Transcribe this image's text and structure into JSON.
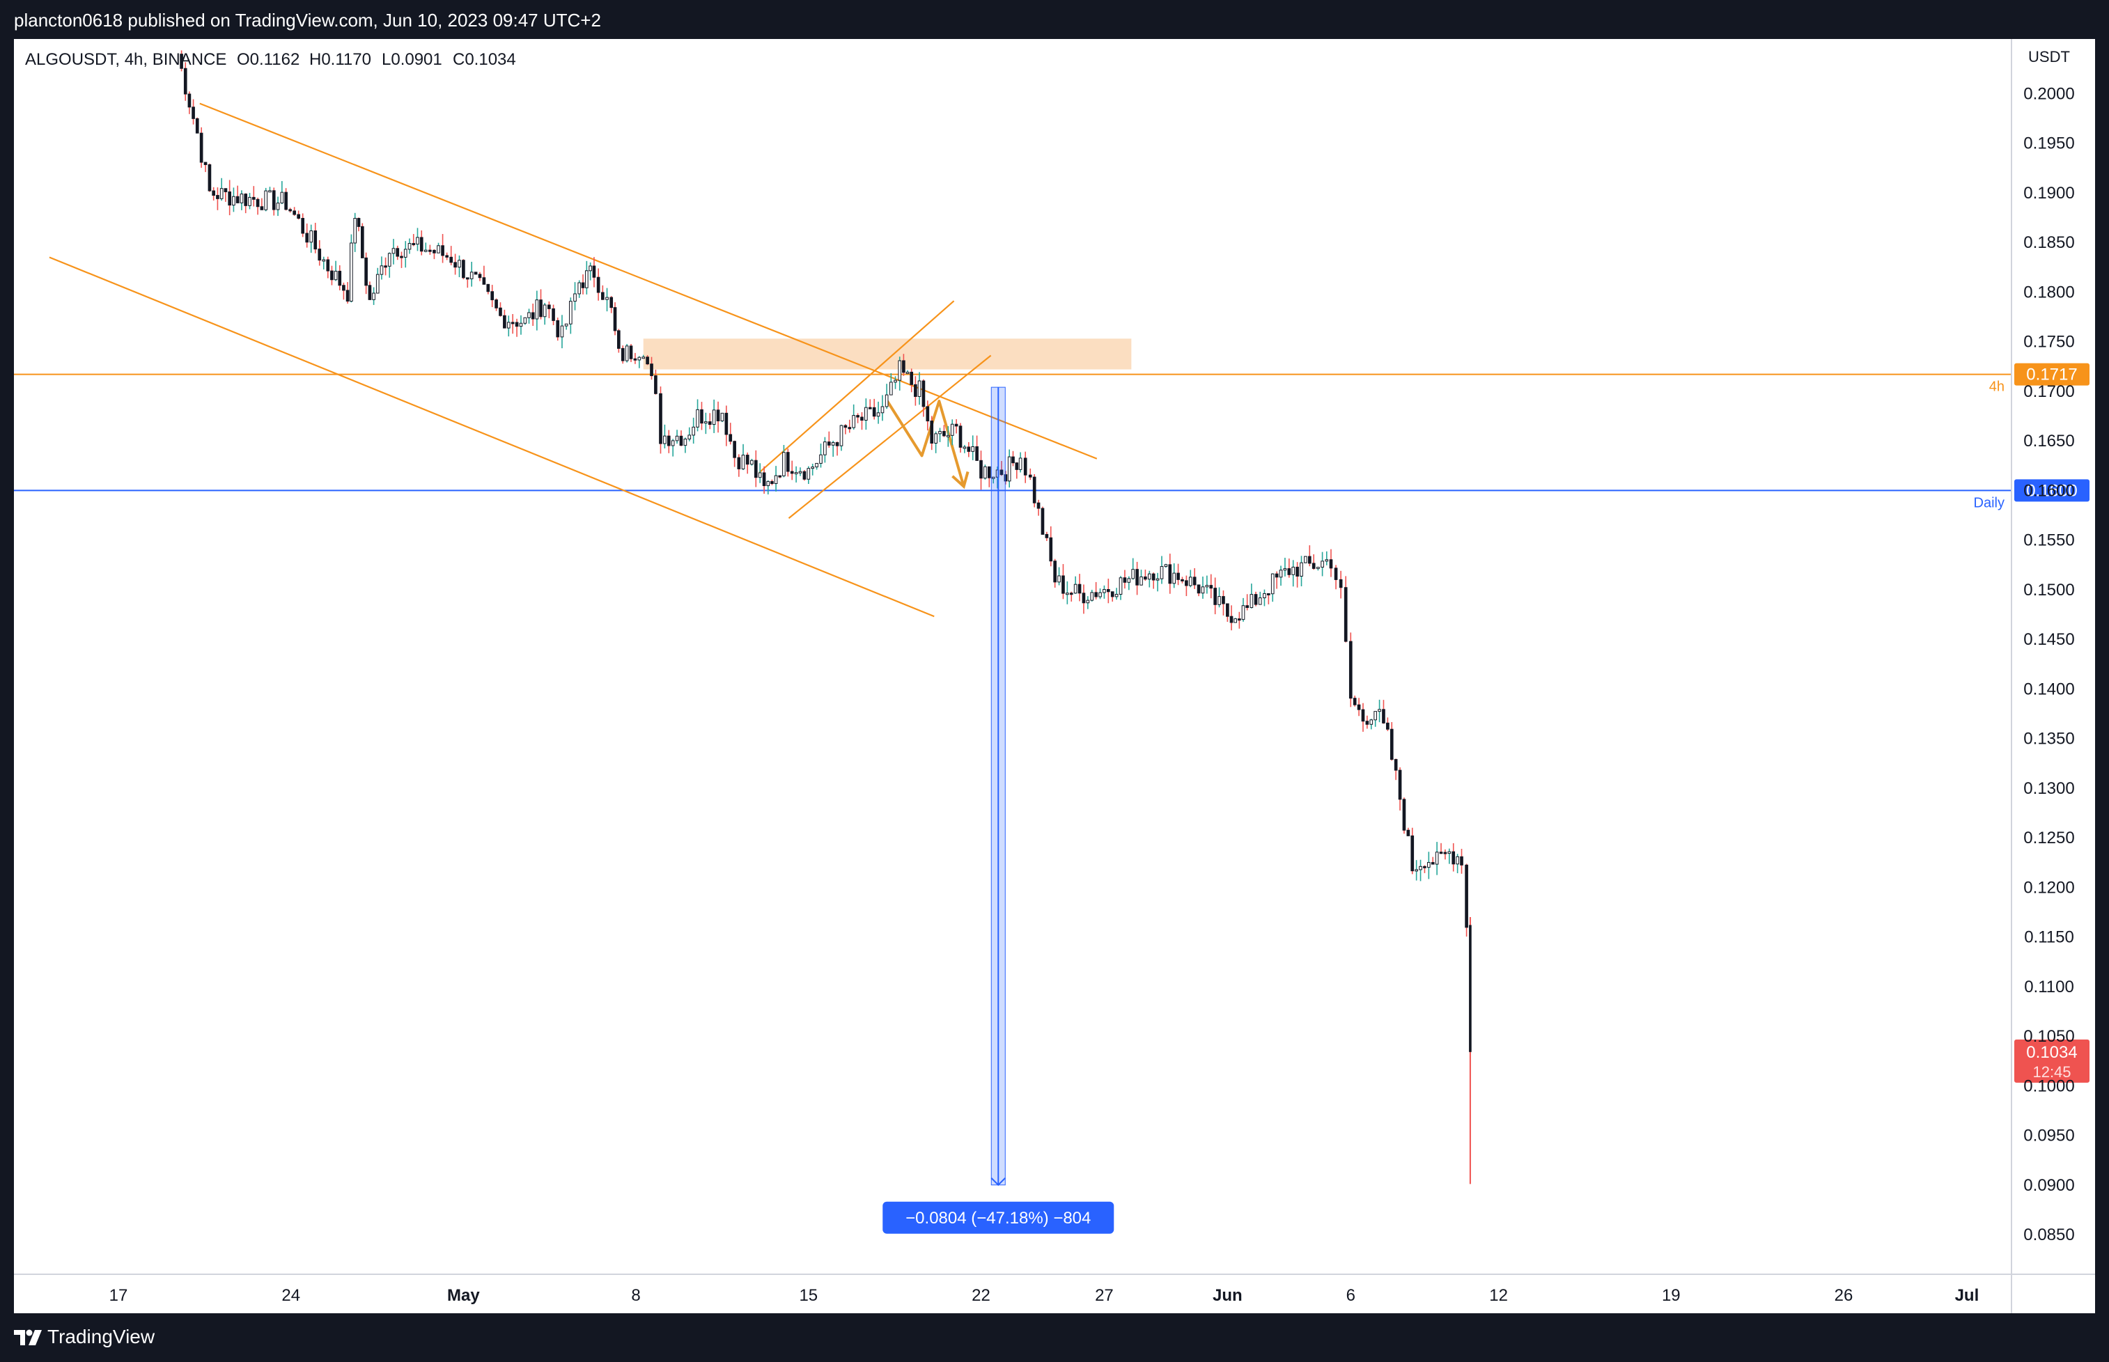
{
  "header": {
    "publisher_line": "plancton0618 published on TradingView.com, Jun 10, 2023 09:47 UTC+2"
  },
  "footer": {
    "brand": "TradingView"
  },
  "colors": {
    "background": "#131722",
    "up": "#26a69a",
    "down": "#131722",
    "wick_down": "#ef5350",
    "trend": "#f7931a",
    "daily_line": "#2962ff",
    "zone": "#fad8b6",
    "measure": "#2962ff"
  },
  "chart_data": {
    "type": "candlestick",
    "title": "ALGOUSDT, 4h, BINANCE",
    "ohlc_label": {
      "open": "O0.1162",
      "high": "H0.1170",
      "low": "L0.0901",
      "close": "C0.1034"
    },
    "currency": "USDT",
    "ylim": [
      0.081,
      0.2055
    ],
    "y_ticks": [
      "0.2000",
      "0.1950",
      "0.1900",
      "0.1850",
      "0.1800",
      "0.1750",
      "0.1700",
      "0.1650",
      "0.1600",
      "0.1550",
      "0.1500",
      "0.1450",
      "0.1400",
      "0.1350",
      "0.1300",
      "0.1250",
      "0.1200",
      "0.1150",
      "0.1100",
      "0.1050",
      "0.1000",
      "0.0950",
      "0.0900",
      "0.0850"
    ],
    "x_ticks": [
      {
        "label": "17",
        "day": 0
      },
      {
        "label": "24",
        "day": 7
      },
      {
        "label": "May",
        "day": 14
      },
      {
        "label": "8",
        "day": 21
      },
      {
        "label": "15",
        "day": 28
      },
      {
        "label": "22",
        "day": 35
      },
      {
        "label": "27",
        "day": 40
      },
      {
        "label": "Jun",
        "day": 45
      },
      {
        "label": "6",
        "day": 50
      },
      {
        "label": "12",
        "day": 56
      },
      {
        "label": "19",
        "day": 63
      },
      {
        "label": "26",
        "day": 70
      },
      {
        "label": "Jul",
        "day": 75
      }
    ],
    "x_tick_bold": [
      "May",
      "Jun",
      "Jul"
    ],
    "price_path": [
      [
        2.4,
        0.204
      ],
      [
        3.2,
        0.196
      ],
      [
        3.7,
        0.19
      ],
      [
        5.0,
        0.1895
      ],
      [
        6.8,
        0.189
      ],
      [
        8.5,
        0.1825
      ],
      [
        9.3,
        0.18
      ],
      [
        9.6,
        0.188
      ],
      [
        10.2,
        0.179
      ],
      [
        11.0,
        0.1845
      ],
      [
        12.3,
        0.1845
      ],
      [
        13.5,
        0.1835
      ],
      [
        14.5,
        0.181
      ],
      [
        15.5,
        0.1775
      ],
      [
        16.5,
        0.177
      ],
      [
        17.3,
        0.179
      ],
      [
        18.0,
        0.1755
      ],
      [
        18.7,
        0.181
      ],
      [
        19.3,
        0.182
      ],
      [
        20.0,
        0.178
      ],
      [
        20.3,
        0.1735
      ],
      [
        21.3,
        0.1745
      ],
      [
        21.8,
        0.169
      ],
      [
        22.0,
        0.1655
      ],
      [
        23.0,
        0.1655
      ],
      [
        23.5,
        0.1675
      ],
      [
        24.5,
        0.168
      ],
      [
        25.0,
        0.1635
      ],
      [
        25.7,
        0.1625
      ],
      [
        26.2,
        0.16
      ],
      [
        27.0,
        0.163
      ],
      [
        28.0,
        0.162
      ],
      [
        29.0,
        0.165
      ],
      [
        30.0,
        0.167
      ],
      [
        31.0,
        0.168
      ],
      [
        31.7,
        0.172
      ],
      [
        32.5,
        0.17
      ],
      [
        33.0,
        0.165
      ],
      [
        34.0,
        0.166
      ],
      [
        35.0,
        0.162
      ],
      [
        36.0,
        0.162
      ],
      [
        36.6,
        0.1635
      ],
      [
        37.0,
        0.161
      ],
      [
        37.5,
        0.156
      ],
      [
        38.0,
        0.151
      ],
      [
        38.5,
        0.15
      ],
      [
        39.0,
        0.1495
      ],
      [
        40.0,
        0.15
      ],
      [
        41.0,
        0.151
      ],
      [
        42.0,
        0.152
      ],
      [
        43.0,
        0.1515
      ],
      [
        44.0,
        0.15
      ],
      [
        45.0,
        0.1475
      ],
      [
        45.8,
        0.148
      ],
      [
        46.5,
        0.15
      ],
      [
        47.5,
        0.152
      ],
      [
        48.5,
        0.1525
      ],
      [
        49.2,
        0.153
      ],
      [
        49.6,
        0.1495
      ],
      [
        50.0,
        0.139
      ],
      [
        50.5,
        0.137
      ],
      [
        51.0,
        0.138
      ],
      [
        51.5,
        0.135
      ],
      [
        52.0,
        0.129
      ],
      [
        52.5,
        0.122
      ],
      [
        53.0,
        0.123
      ],
      [
        53.5,
        0.1225
      ],
      [
        54.0,
        0.1235
      ],
      [
        54.5,
        0.123
      ],
      [
        54.7,
        0.116
      ],
      [
        54.8,
        0.1034
      ]
    ],
    "last_candle": {
      "day": 54.85,
      "open": 0.1162,
      "high": 0.117,
      "low": 0.0901,
      "close": 0.1034
    },
    "horizontal_levels": [
      {
        "price": 0.1717,
        "label": "0.1717",
        "tag": "4h",
        "color": "#f7931a"
      },
      {
        "price": 0.16,
        "label": "0.1600",
        "tag": "Daily",
        "color": "#2962ff"
      }
    ],
    "last_price_label": {
      "price": 0.1034,
      "label": "0.1034",
      "countdown": "12:45",
      "color": "#ef5350"
    },
    "supply_zone": {
      "day_from": 21.3,
      "day_to": 41.1,
      "price_low": 0.1722,
      "price_high": 0.1753
    },
    "trendlines": [
      {
        "from": [
          3.3,
          0.199
        ],
        "to": [
          39.7,
          0.1632
        ]
      },
      {
        "from": [
          -2.8,
          0.1835
        ],
        "to": [
          33.1,
          0.1473
        ]
      },
      {
        "from": [
          26.0,
          0.1618
        ],
        "to": [
          33.9,
          0.1791
        ]
      },
      {
        "from": [
          27.2,
          0.1572
        ],
        "to": [
          35.4,
          0.1736
        ]
      }
    ],
    "projection_path": [
      [
        31.2,
        0.169
      ],
      [
        32.6,
        0.1635
      ],
      [
        33.3,
        0.169
      ],
      [
        34.3,
        0.1604
      ]
    ],
    "measure": {
      "day": 35.7,
      "from_price": 0.1704,
      "to_price": 0.09,
      "label": "−0.0804 (−47.18%) −804"
    }
  }
}
